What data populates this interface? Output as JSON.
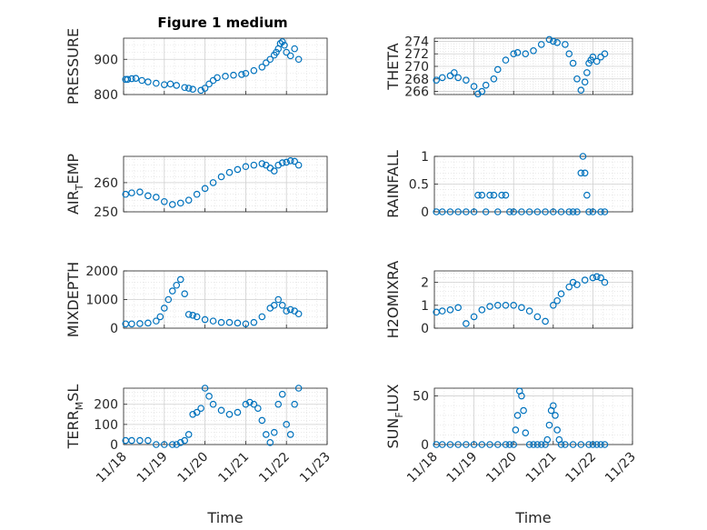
{
  "figure": {
    "title": "Figure 1 medium",
    "marker_color": "#0072BD"
  },
  "chart_data": [
    {
      "type": "scatter",
      "ylabel": "PRESSURE",
      "ylabel_sub": "",
      "title": "Figure 1 medium",
      "xlim": [
        0,
        5
      ],
      "ylim": [
        800,
        960
      ],
      "yticks": [
        800,
        900
      ],
      "yticklabels": [
        "800",
        "900"
      ],
      "xticks": [],
      "xticklabels": [],
      "xlabel": "",
      "grid": true,
      "x": [
        0.05,
        0.1,
        0.2,
        0.3,
        0.45,
        0.6,
        0.8,
        1.0,
        1.15,
        1.3,
        1.5,
        1.6,
        1.7,
        1.9,
        2.0,
        2.1,
        2.2,
        2.3,
        2.5,
        2.7,
        2.9,
        3.0,
        3.2,
        3.4,
        3.5,
        3.6,
        3.7,
        3.75,
        3.8,
        3.85,
        3.9,
        3.95,
        4.0,
        4.1,
        4.2,
        4.3
      ],
      "y": [
        843,
        843,
        845,
        846,
        840,
        836,
        832,
        828,
        830,
        826,
        820,
        818,
        815,
        812,
        818,
        830,
        840,
        848,
        852,
        855,
        857,
        860,
        868,
        878,
        890,
        900,
        912,
        920,
        930,
        945,
        950,
        940,
        920,
        910,
        930,
        900
      ]
    },
    {
      "type": "scatter",
      "ylabel": "THETA",
      "ylabel_sub": "",
      "title": "",
      "xlim": [
        0,
        5
      ],
      "ylim": [
        265.5,
        274.5
      ],
      "yticks": [
        266,
        268,
        270,
        272,
        274
      ],
      "yticklabels": [
        "266",
        "268",
        "270",
        "272",
        "274"
      ],
      "xticks": [],
      "xticklabels": [],
      "xlabel": "",
      "grid": true,
      "x": [
        0.05,
        0.2,
        0.4,
        0.5,
        0.6,
        0.8,
        1.0,
        1.1,
        1.2,
        1.3,
        1.5,
        1.6,
        1.8,
        2.0,
        2.1,
        2.3,
        2.5,
        2.7,
        2.9,
        3.0,
        3.1,
        3.3,
        3.4,
        3.5,
        3.6,
        3.7,
        3.8,
        3.85,
        3.9,
        3.95,
        4.0,
        4.1,
        4.2,
        4.3
      ],
      "y": [
        267.8,
        268.2,
        268.5,
        269,
        268.2,
        267.8,
        266.8,
        265.6,
        266,
        267,
        268,
        269.5,
        271,
        272,
        272.2,
        272,
        272.5,
        273.5,
        274.3,
        274,
        273.8,
        273.5,
        272,
        270.5,
        268,
        266.2,
        267.5,
        269,
        270.5,
        271,
        271.5,
        270.8,
        271.5,
        272
      ]
    },
    {
      "type": "scatter",
      "ylabel": "AIR",
      "ylabel_sub": "T",
      "ylabel_suffix": "EMP",
      "title": "",
      "xlim": [
        0,
        5
      ],
      "ylim": [
        250,
        269
      ],
      "yticks": [
        250,
        260
      ],
      "yticklabels": [
        "250",
        "260"
      ],
      "xticks": [],
      "xticklabels": [],
      "xlabel": "",
      "grid": true,
      "x": [
        0.05,
        0.2,
        0.4,
        0.6,
        0.8,
        1.0,
        1.2,
        1.4,
        1.6,
        1.8,
        2.0,
        2.2,
        2.4,
        2.6,
        2.8,
        3.0,
        3.2,
        3.4,
        3.5,
        3.6,
        3.7,
        3.8,
        3.9,
        4.0,
        4.1,
        4.2,
        4.3
      ],
      "y": [
        256,
        256.5,
        256.8,
        255.5,
        255,
        253.5,
        252.5,
        253,
        254,
        256,
        258,
        260,
        262,
        263.5,
        264.5,
        265.5,
        266,
        266.5,
        266,
        265,
        264,
        266,
        266.8,
        267,
        267.5,
        267.3,
        266
      ]
    },
    {
      "type": "scatter",
      "ylabel": "RAINFALL",
      "ylabel_sub": "",
      "title": "",
      "xlim": [
        0,
        5
      ],
      "ylim": [
        0,
        1
      ],
      "yticks": [
        0,
        0.5,
        1
      ],
      "yticklabels": [
        "0",
        "0.5",
        "1"
      ],
      "xticks": [],
      "xticklabels": [],
      "xlabel": "",
      "grid": true,
      "x": [
        0.05,
        0.2,
        0.4,
        0.6,
        0.8,
        1.0,
        1.1,
        1.2,
        1.3,
        1.4,
        1.5,
        1.6,
        1.7,
        1.8,
        1.9,
        2.0,
        2.2,
        2.4,
        2.6,
        2.8,
        3.0,
        3.2,
        3.4,
        3.5,
        3.6,
        3.7,
        3.75,
        3.8,
        3.85,
        3.9,
        4.0,
        4.2,
        4.3
      ],
      "y": [
        0,
        0,
        0,
        0,
        0,
        0,
        0.3,
        0.3,
        0,
        0.3,
        0.3,
        0,
        0.3,
        0.3,
        0,
        0,
        0,
        0,
        0,
        0,
        0,
        0,
        0,
        0,
        0,
        0.7,
        1,
        0.7,
        0.3,
        0,
        0,
        0,
        0
      ]
    },
    {
      "type": "scatter",
      "ylabel": "MIXDEPTH",
      "ylabel_sub": "",
      "title": "",
      "xlim": [
        0,
        5
      ],
      "ylim": [
        0,
        2000
      ],
      "yticks": [
        0,
        1000,
        2000
      ],
      "yticklabels": [
        "0",
        "1000",
        "2000"
      ],
      "xticks": [],
      "xticklabels": [],
      "xlabel": "",
      "grid": true,
      "x": [
        0.05,
        0.2,
        0.4,
        0.6,
        0.8,
        0.9,
        1.0,
        1.1,
        1.2,
        1.3,
        1.4,
        1.5,
        1.6,
        1.7,
        1.8,
        2.0,
        2.2,
        2.4,
        2.6,
        2.8,
        3.0,
        3.2,
        3.4,
        3.6,
        3.7,
        3.8,
        3.9,
        4.0,
        4.1,
        4.2,
        4.3
      ],
      "y": [
        150,
        150,
        160,
        180,
        250,
        400,
        700,
        1000,
        1300,
        1500,
        1700,
        1200,
        480,
        450,
        400,
        300,
        250,
        200,
        200,
        180,
        150,
        200,
        400,
        700,
        800,
        1000,
        800,
        600,
        650,
        600,
        500
      ]
    },
    {
      "type": "scatter",
      "ylabel": "H2OMIXRA",
      "ylabel_sub": "",
      "title": "",
      "xlim": [
        0,
        5
      ],
      "ylim": [
        0,
        2.5
      ],
      "yticks": [
        0,
        1,
        2
      ],
      "yticklabels": [
        "0",
        "1",
        "2"
      ],
      "xticks": [],
      "xticklabels": [],
      "xlabel": "",
      "grid": true,
      "x": [
        0.05,
        0.2,
        0.4,
        0.6,
        0.8,
        1.0,
        1.2,
        1.4,
        1.6,
        1.8,
        2.0,
        2.2,
        2.4,
        2.6,
        2.8,
        3.0,
        3.1,
        3.2,
        3.4,
        3.5,
        3.6,
        3.8,
        4.0,
        4.1,
        4.2,
        4.3
      ],
      "y": [
        0.7,
        0.75,
        0.8,
        0.9,
        0.2,
        0.5,
        0.8,
        0.95,
        1.0,
        1.0,
        1.0,
        0.9,
        0.75,
        0.5,
        0.3,
        1.0,
        1.2,
        1.5,
        1.8,
        2.0,
        1.9,
        2.1,
        2.2,
        2.25,
        2.2,
        2.0
      ]
    },
    {
      "type": "scatter",
      "ylabel": "TERR",
      "ylabel_sub": "M",
      "ylabel_suffix": "SL",
      "title": "",
      "xlim": [
        0,
        5
      ],
      "ylim": [
        0,
        280
      ],
      "yticks": [
        0,
        100,
        200
      ],
      "yticklabels": [
        "0",
        "100",
        "200"
      ],
      "xticks": [
        0,
        1,
        2,
        3,
        4,
        5
      ],
      "xticklabels": [
        "11/18",
        "11/19",
        "11/20",
        "11/21",
        "11/22",
        "11/23"
      ],
      "xlabel": "Time",
      "grid": true,
      "x": [
        0.05,
        0.2,
        0.4,
        0.6,
        0.8,
        1.0,
        1.2,
        1.3,
        1.4,
        1.5,
        1.6,
        1.7,
        1.8,
        1.9,
        2.0,
        2.1,
        2.2,
        2.4,
        2.6,
        2.8,
        3.0,
        3.1,
        3.2,
        3.3,
        3.4,
        3.5,
        3.6,
        3.7,
        3.8,
        3.9,
        4.0,
        4.1,
        4.2,
        4.3
      ],
      "y": [
        20,
        20,
        20,
        20,
        0,
        0,
        0,
        0,
        10,
        20,
        50,
        150,
        160,
        180,
        280,
        240,
        200,
        170,
        150,
        160,
        200,
        210,
        200,
        180,
        120,
        50,
        10,
        60,
        200,
        250,
        100,
        50,
        200,
        280
      ]
    },
    {
      "type": "scatter",
      "ylabel": "SUN",
      "ylabel_sub": "F",
      "ylabel_suffix": "LUX",
      "title": "",
      "xlim": [
        0,
        5
      ],
      "ylim": [
        0,
        58
      ],
      "yticks": [
        0,
        50
      ],
      "yticklabels": [
        "0",
        "50"
      ],
      "xticks": [
        0,
        1,
        2,
        3,
        4,
        5
      ],
      "xticklabels": [
        "11/18",
        "11/19",
        "11/20",
        "11/21",
        "11/22",
        "11/23"
      ],
      "xlabel": "Time",
      "grid": true,
      "x": [
        0.05,
        0.2,
        0.4,
        0.6,
        0.8,
        1.0,
        1.2,
        1.4,
        1.6,
        1.8,
        1.9,
        2.0,
        2.05,
        2.1,
        2.15,
        2.2,
        2.25,
        2.3,
        2.4,
        2.5,
        2.6,
        2.7,
        2.8,
        2.85,
        2.9,
        2.95,
        3.0,
        3.05,
        3.1,
        3.15,
        3.2,
        3.3,
        3.5,
        3.7,
        3.9,
        4.0,
        4.1,
        4.2,
        4.3
      ],
      "y": [
        0,
        0,
        0,
        0,
        0,
        0,
        0,
        0,
        0,
        0,
        0,
        0,
        15,
        30,
        55,
        50,
        35,
        12,
        0,
        0,
        0,
        0,
        0,
        5,
        20,
        35,
        40,
        30,
        15,
        5,
        0,
        0,
        0,
        0,
        0,
        0,
        0,
        0,
        0
      ]
    }
  ]
}
